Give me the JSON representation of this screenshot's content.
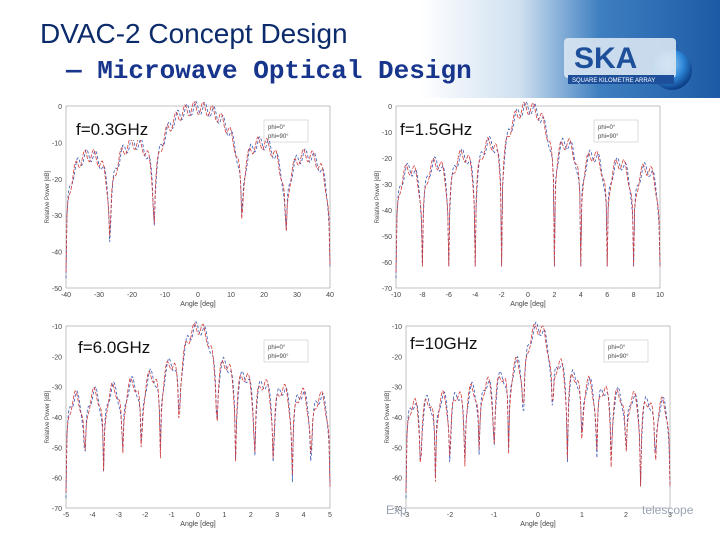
{
  "slide": {
    "title": "DVAC-2 Concept Design",
    "subtitle": "— Microwave Optical Design",
    "logo": {
      "text": "SKA",
      "subtext": "SQUARE KILOMETRE ARRAY"
    },
    "footer_left": "Exp",
    "footer_right": "telescope"
  },
  "colors": {
    "red": "#d23c3c",
    "blue": "#3a55b4",
    "title": "#0c2b6b",
    "header_blue": "#1d5aa6"
  },
  "plots": [
    {
      "freq_label": "f=0.3GHz",
      "xlabel": "Angle [deg]",
      "ylabel": "Relative Power [dB]",
      "xticks": [
        "-40",
        "-30",
        "-20",
        "-10",
        "0",
        "10",
        "20",
        "30",
        "40"
      ],
      "yticks": [
        "0",
        "-10",
        "-20",
        "-30",
        "-40",
        "-50"
      ],
      "legend": [
        "phi=0°",
        "phi=90°"
      ]
    },
    {
      "freq_label": "f=1.5GHz",
      "xlabel": "Angle [deg]",
      "ylabel": "Relative Power [dB]",
      "xticks": [
        "-10",
        "-8",
        "-6",
        "-4",
        "-2",
        "0",
        "2",
        "4",
        "6",
        "8",
        "10"
      ],
      "yticks": [
        "0",
        "-10",
        "-20",
        "-30",
        "-40",
        "-50",
        "-60",
        "-70"
      ],
      "legend": [
        "phi=0°",
        "phi=90°"
      ]
    },
    {
      "freq_label": "f=6.0GHz",
      "xlabel": "Angle [deg]",
      "ylabel": "Relative Power [dB]",
      "xticks": [
        "-5",
        "-4",
        "-3",
        "-2",
        "-1",
        "0",
        "1",
        "2",
        "3",
        "4",
        "5"
      ],
      "yticks": [
        "-10",
        "-20",
        "-30",
        "-40",
        "-50",
        "-60",
        "-70"
      ],
      "legend": [
        "phi=0°",
        "phi=90°"
      ]
    },
    {
      "freq_label": "f=10GHz",
      "xlabel": "Angle [deg]",
      "ylabel": "Relative Power [dB]",
      "xticks": [
        "-3",
        "-2",
        "-1",
        "0",
        "1",
        "2",
        "3"
      ],
      "yticks": [
        "-10",
        "-20",
        "-30",
        "-40",
        "-50",
        "-60",
        "-70"
      ],
      "legend": [
        "phi=0°",
        "phi=90°"
      ]
    }
  ]
}
